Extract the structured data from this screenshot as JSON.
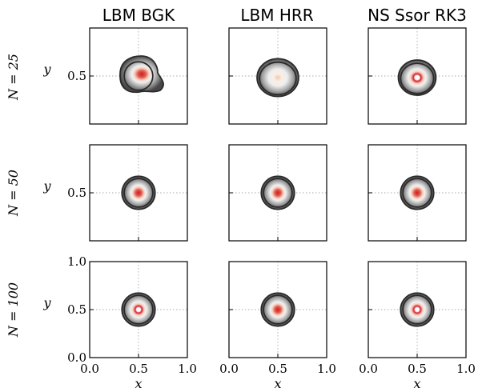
{
  "chart_data": {
    "type": "heatmap",
    "columns": [
      "LBM BGK",
      "LBM HRR",
      "NS Ssor RK3"
    ],
    "rows": [
      {
        "label": "N = 25",
        "N": 25
      },
      {
        "label": "N = 50",
        "N": 50
      },
      {
        "label": "N = 100",
        "N": 100
      }
    ],
    "xlabel": "x",
    "ylabel": "y",
    "xlim": [
      0.0,
      1.0
    ],
    "ylim": [
      0.0,
      1.0
    ],
    "xticks": [
      "0.0",
      "0.5",
      "1.0"
    ],
    "yticks": [
      "0.0",
      "0.5",
      "1.0"
    ],
    "grid_lines_at": [
      0.5
    ],
    "vortex_center": [
      0.5,
      0.5
    ],
    "colors": {
      "core": "#c81f2a",
      "mid": "#f5d4c4",
      "outer": "#4a4a4a",
      "contour": "#2a2a2a"
    }
  }
}
